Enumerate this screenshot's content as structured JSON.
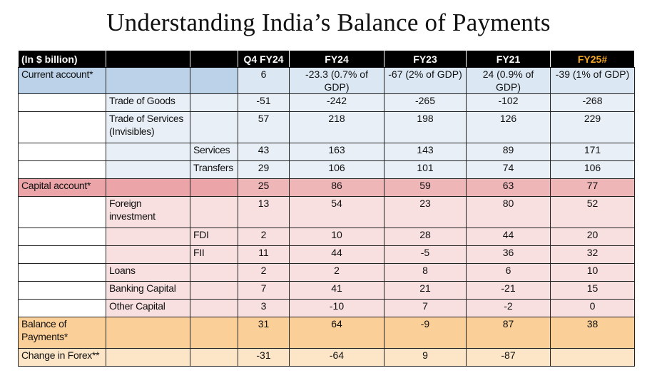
{
  "title": "Understanding India’s Balance of Payments",
  "header": {
    "unit": "(In $ billion)",
    "columns": [
      "Q4 FY24",
      "FY24",
      "FY23",
      "FY21",
      "FY25#"
    ],
    "highlight_color": "#f5a623"
  },
  "rows": [
    {
      "l1": "Current account*",
      "l2": "",
      "l3": "",
      "values": [
        "6",
        "-23.3 (0.7% of GDP)",
        "-67 (2% of GDP)",
        "24 (0.9% of GDP)",
        "-39 (1% of GDP)"
      ]
    },
    {
      "l1": "",
      "l2": "Trade of Goods",
      "l3": "",
      "values": [
        "-51",
        "-242",
        "-265",
        "-102",
        "-268"
      ]
    },
    {
      "l1": "",
      "l2": "Trade of Services (Invisibles)",
      "l3": "",
      "values": [
        "57",
        "218",
        "198",
        "126",
        "229"
      ]
    },
    {
      "l1": "",
      "l2": "",
      "l3": "Services",
      "values": [
        "43",
        "163",
        "143",
        "89",
        "171"
      ]
    },
    {
      "l1": "",
      "l2": "",
      "l3": "Transfers",
      "values": [
        "29",
        "106",
        "101",
        "74",
        "106"
      ]
    },
    {
      "l1": "Capital account*",
      "l2": "",
      "l3": "",
      "values": [
        "25",
        "86",
        "59",
        "63",
        "77"
      ]
    },
    {
      "l1": "",
      "l2": "Foreign investment",
      "l3": "",
      "values": [
        "13",
        "54",
        "23",
        "80",
        "52"
      ]
    },
    {
      "l1": "",
      "l2": "",
      "l3": "FDI",
      "values": [
        "2",
        "10",
        "28",
        "44",
        "20"
      ]
    },
    {
      "l1": "",
      "l2": "",
      "l3": "FII",
      "values": [
        "11",
        "44",
        "-5",
        "36",
        "32"
      ]
    },
    {
      "l1": "",
      "l2": "Loans",
      "l3": "",
      "values": [
        "2",
        "2",
        "8",
        "6",
        "10"
      ]
    },
    {
      "l1": "",
      "l2": "Banking Capital",
      "l3": "",
      "values": [
        "7",
        "41",
        "21",
        "-21",
        "15"
      ]
    },
    {
      "l1": "",
      "l2": "Other Capital",
      "l3": "",
      "values": [
        "3",
        "-10",
        "7",
        "-2",
        "0"
      ]
    },
    {
      "l1": "Balance of Payments*",
      "l2": "",
      "l3": "",
      "values": [
        "31",
        "64",
        "-9",
        "87",
        "38"
      ]
    },
    {
      "l1": "Change in Forex**",
      "l2": "",
      "l3": "",
      "values": [
        "-31",
        "-64",
        "9",
        "-87",
        ""
      ]
    }
  ]
}
